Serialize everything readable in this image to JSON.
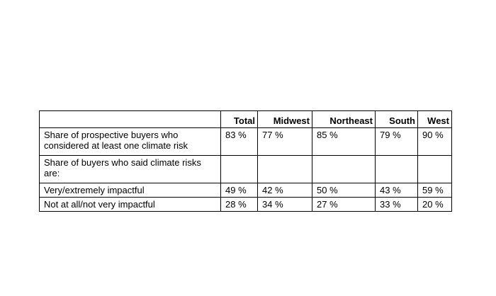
{
  "table": {
    "headers": [
      "",
      "Total",
      "Midwest",
      "Northeast",
      "South",
      "West"
    ],
    "rows": [
      {
        "label": "Share of prospective buyers who considered at least one climate risk",
        "values": [
          "83 %",
          "77 %",
          "85 %",
          "79 %",
          "90 %"
        ]
      },
      {
        "label": "Share of buyers who said climate risks are:",
        "values": [
          "",
          "",
          "",
          "",
          ""
        ]
      },
      {
        "label": "Very/extremely impactful",
        "values": [
          "49 %",
          "42 %",
          "50 %",
          "43 %",
          "59 %"
        ]
      },
      {
        "label": "Not at all/not very impactful",
        "values": [
          "28 %",
          "34 %",
          "27 %",
          "33 %",
          "20 %"
        ]
      }
    ]
  }
}
